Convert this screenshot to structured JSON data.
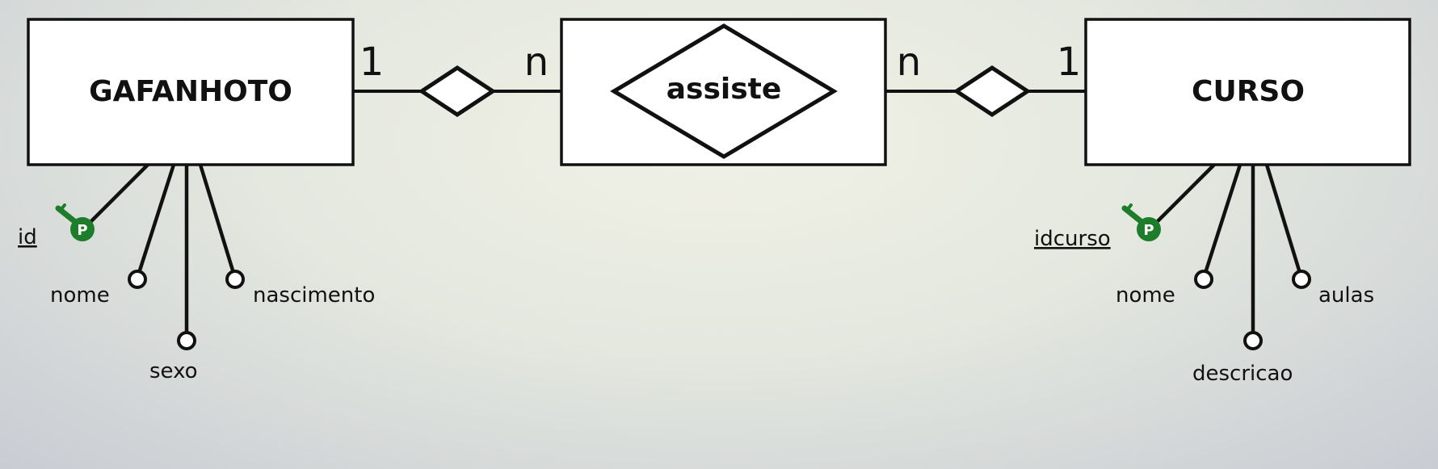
{
  "entities": {
    "left": {
      "name": "GAFANHOTO"
    },
    "middle": {
      "name": "assiste"
    },
    "right": {
      "name": "CURSO"
    }
  },
  "relationships": {
    "left": {
      "card_entity": "1",
      "card_assoc": "n"
    },
    "right": {
      "card_assoc": "n",
      "card_entity": "1"
    }
  },
  "attributes": {
    "gafanhoto": {
      "key": "id",
      "a1": "nome",
      "a2": "sexo",
      "a3": "nascimento"
    },
    "curso": {
      "key": "idcurso",
      "a1": "nome",
      "a2": "descricao",
      "a3": "aulas"
    }
  },
  "key_badge": "P",
  "colors": {
    "key": "#1e7d2a",
    "stroke": "#111111",
    "box": "#ffffff"
  },
  "icons": [
    "primary-key-icon"
  ]
}
